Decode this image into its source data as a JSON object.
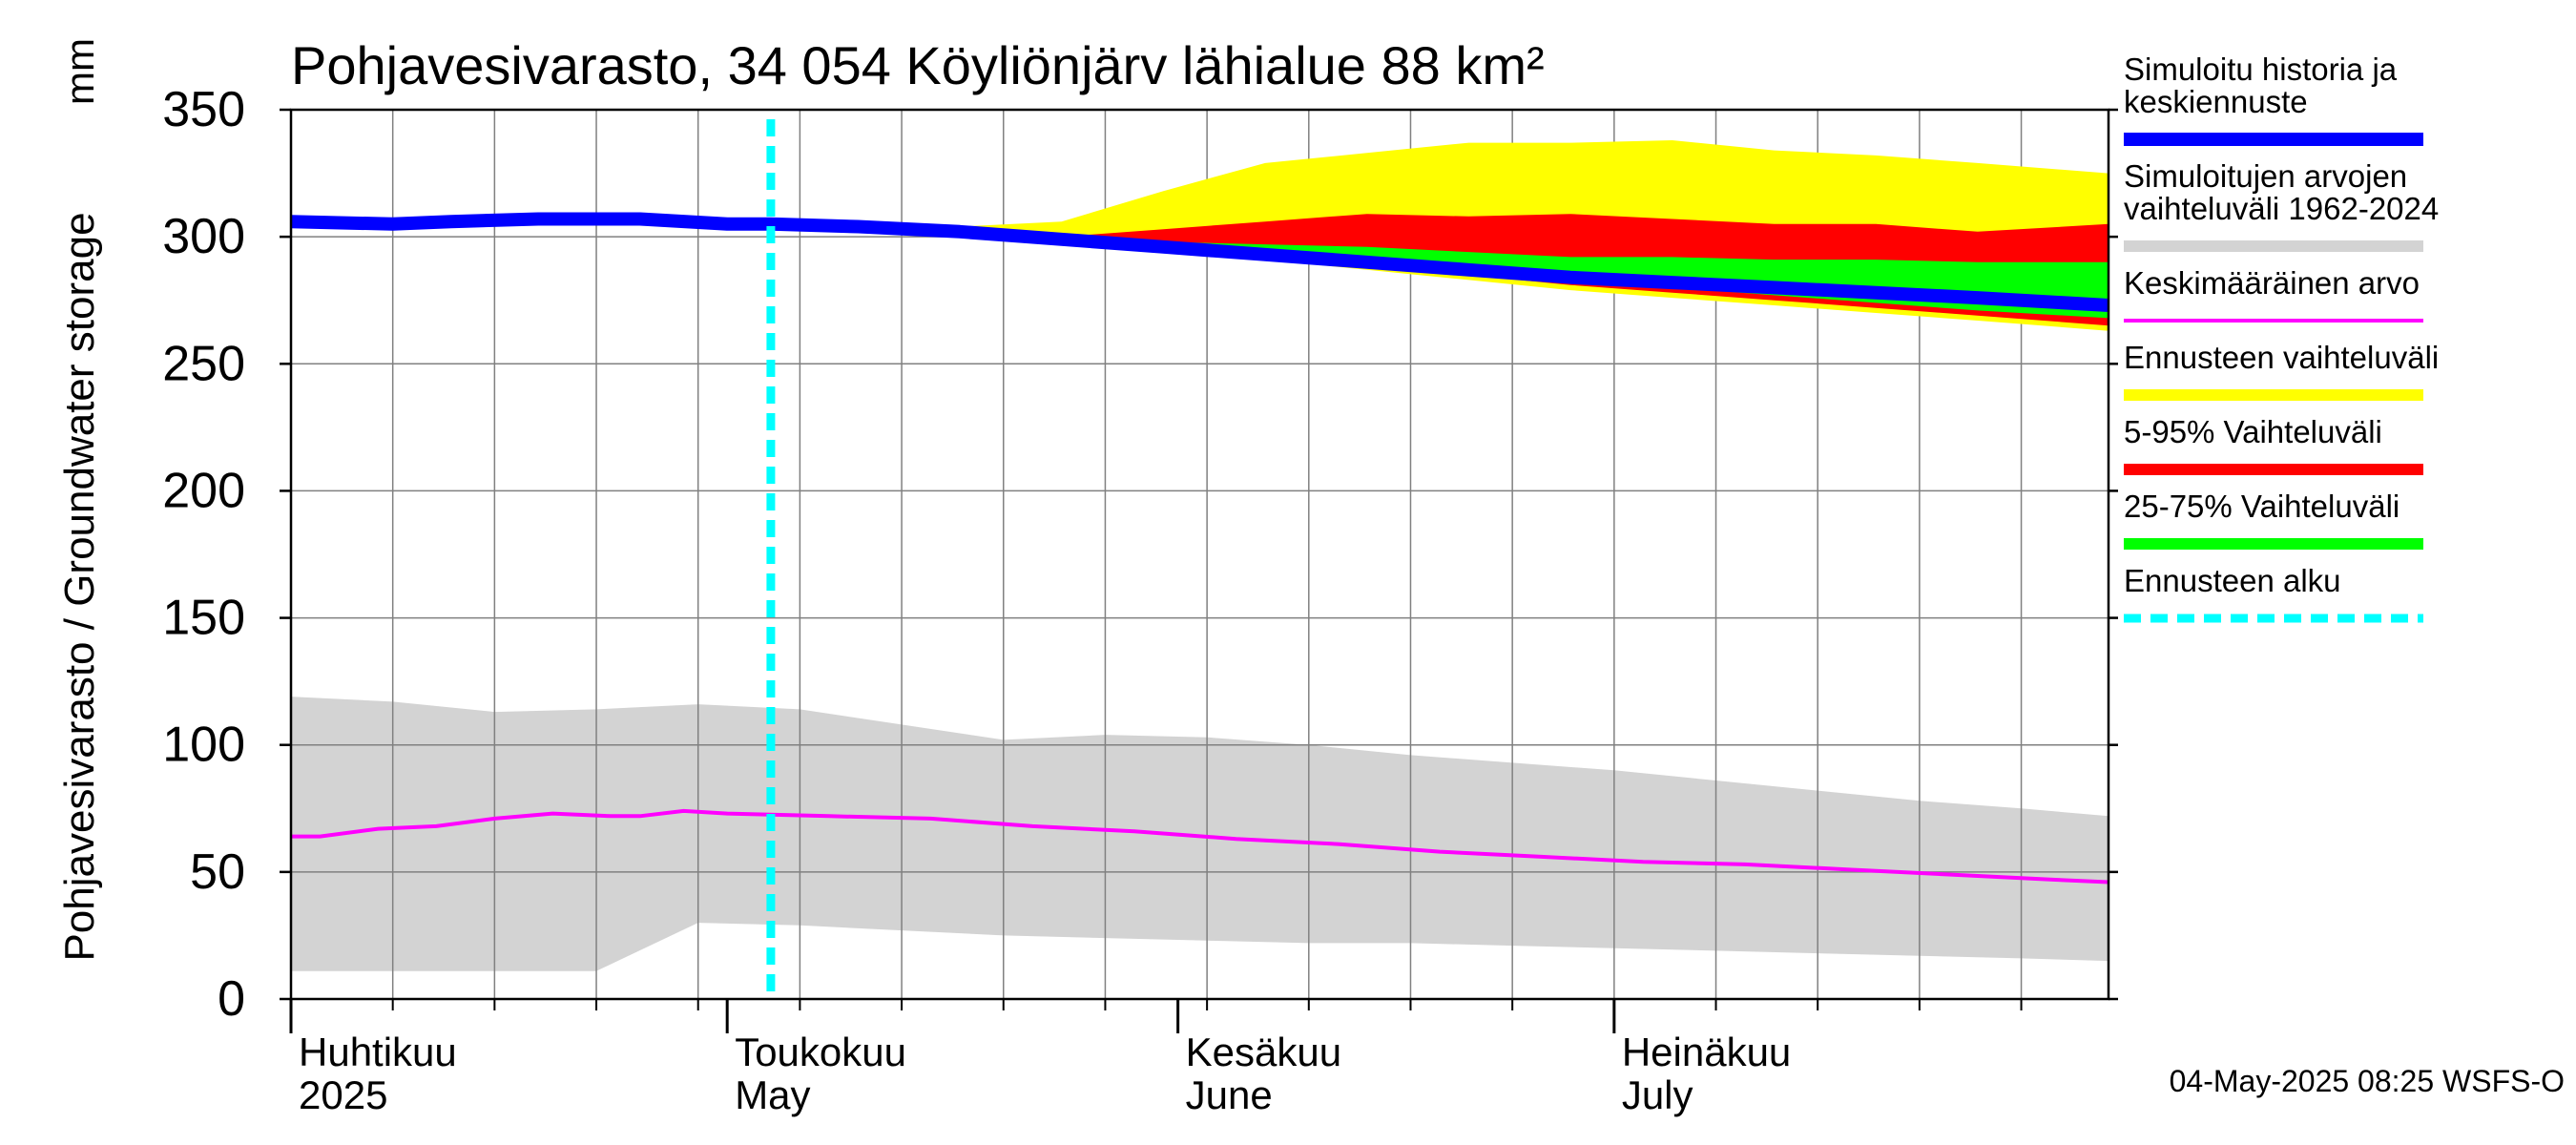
{
  "chart_data": {
    "type": "area",
    "title": "Pohjavesivarasto, 34 054 Köyliönjärv lähialue 88 km²",
    "ylabel": "Pohjavesivarasto / Groundwater storage",
    "yunit": "mm",
    "ylim": [
      0,
      350
    ],
    "yticks": [
      "0",
      "50",
      "100",
      "150",
      "200",
      "250",
      "300",
      "350"
    ],
    "xlim": [
      "2025-04-01",
      "2025-08-04"
    ],
    "months": [
      {
        "date": "2025-04-01",
        "fi": "Huhtikuu",
        "en": "2025"
      },
      {
        "date": "2025-05-01",
        "fi": "Toukokuu",
        "en": "May"
      },
      {
        "date": "2025-06-01",
        "fi": "Kesäkuu",
        "en": "June"
      },
      {
        "date": "2025-07-01",
        "fi": "Heinäkuu",
        "en": "July"
      }
    ],
    "forecast_start": "2025-05-04",
    "grid": true,
    "legend_position": "right",
    "timestamp": "04-May-2025 08:25 WSFS-O",
    "legend": [
      {
        "key": "sim",
        "label": [
          "Simuloitu historia ja",
          "keskiennuste"
        ],
        "color": "#0000ff",
        "style": "thick"
      },
      {
        "key": "hist_range",
        "label": [
          "Simuloitujen arvojen",
          "vaihteluväli 1962-2024"
        ],
        "color": "#d3d3d3",
        "style": "band"
      },
      {
        "key": "mean",
        "label": [
          "Keskimääräinen arvo"
        ],
        "color": "#ff00ff",
        "style": "thin"
      },
      {
        "key": "fc_range",
        "label": [
          "Ennusteen vaihteluväli"
        ],
        "color": "#ffff00",
        "style": "band"
      },
      {
        "key": "p5_95",
        "label": [
          "5-95% Vaihteluväli"
        ],
        "color": "#ff0000",
        "style": "band"
      },
      {
        "key": "p25_75",
        "label": [
          "25-75% Vaihteluväli"
        ],
        "color": "#00ff00",
        "style": "band"
      },
      {
        "key": "fc_start",
        "label": [
          "Ennusteen alku"
        ],
        "color": "#00ffff",
        "style": "dashed"
      }
    ],
    "series": {
      "hist_range": {
        "x": [
          "2025-04-01",
          "2025-04-08",
          "2025-04-15",
          "2025-04-22",
          "2025-04-29",
          "2025-05-06",
          "2025-05-13",
          "2025-05-20",
          "2025-05-27",
          "2025-06-03",
          "2025-06-10",
          "2025-06-17",
          "2025-06-24",
          "2025-07-01",
          "2025-07-08",
          "2025-07-15",
          "2025-07-22",
          "2025-07-29",
          "2025-08-04"
        ],
        "low": [
          11,
          11,
          11,
          11,
          30,
          29,
          27,
          25,
          24,
          23,
          22,
          22,
          21,
          20,
          19,
          18,
          17,
          16,
          15
        ],
        "high": [
          119,
          117,
          113,
          114,
          116,
          114,
          108,
          102,
          104,
          103,
          100,
          96,
          93,
          90,
          86,
          82,
          78,
          75,
          72
        ]
      },
      "mean": {
        "x": [
          "2025-04-01",
          "2025-04-03",
          "2025-04-07",
          "2025-04-11",
          "2025-04-15",
          "2025-04-19",
          "2025-04-23",
          "2025-04-25",
          "2025-04-28",
          "2025-05-01",
          "2025-05-08",
          "2025-05-15",
          "2025-05-22",
          "2025-05-29",
          "2025-06-05",
          "2025-06-12",
          "2025-06-19",
          "2025-06-26",
          "2025-07-03",
          "2025-07-10",
          "2025-07-17",
          "2025-07-24",
          "2025-07-31",
          "2025-08-04"
        ],
        "y": [
          64,
          64,
          67,
          68,
          71,
          73,
          72,
          72,
          74,
          73,
          72,
          71,
          68,
          66,
          63,
          61,
          58,
          56,
          54,
          53,
          51,
          49,
          47,
          46
        ]
      },
      "sim": {
        "x": [
          "2025-04-01",
          "2025-04-08",
          "2025-04-12",
          "2025-04-18",
          "2025-04-25",
          "2025-05-01",
          "2025-05-04",
          "2025-05-10",
          "2025-05-17",
          "2025-05-24",
          "2025-05-31",
          "2025-06-07",
          "2025-06-14",
          "2025-06-21",
          "2025-06-28",
          "2025-07-05",
          "2025-07-12",
          "2025-07-19",
          "2025-07-26",
          "2025-08-04"
        ],
        "y": [
          306,
          305,
          306,
          307,
          307,
          305,
          305,
          304,
          302,
          299,
          296,
          293,
          290,
          287,
          284,
          282,
          280,
          278,
          276,
          273
        ]
      },
      "fc_range": {
        "x": [
          "2025-05-04",
          "2025-05-10",
          "2025-05-17",
          "2025-05-24",
          "2025-05-31",
          "2025-06-07",
          "2025-06-14",
          "2025-06-21",
          "2025-06-28",
          "2025-07-05",
          "2025-07-12",
          "2025-07-19",
          "2025-07-26",
          "2025-08-04"
        ],
        "low": [
          305,
          304,
          302,
          298,
          294,
          291,
          287,
          283,
          279,
          276,
          273,
          270,
          267,
          263
        ],
        "high": [
          305,
          304,
          304,
          306,
          318,
          329,
          333,
          337,
          337,
          338,
          334,
          332,
          329,
          325
        ]
      },
      "p5_95": {
        "x": [
          "2025-05-04",
          "2025-05-10",
          "2025-05-17",
          "2025-05-24",
          "2025-05-31",
          "2025-06-07",
          "2025-06-14",
          "2025-06-21",
          "2025-06-28",
          "2025-07-05",
          "2025-07-12",
          "2025-07-19",
          "2025-07-26",
          "2025-08-04"
        ],
        "low": [
          305,
          304,
          302,
          299,
          295,
          292,
          288,
          285,
          281,
          278,
          275,
          272,
          269,
          265
        ],
        "high": [
          305,
          304,
          302,
          300,
          303,
          306,
          309,
          308,
          309,
          307,
          305,
          305,
          302,
          305
        ]
      },
      "p25_75": {
        "x": [
          "2025-05-04",
          "2025-05-10",
          "2025-05-17",
          "2025-05-24",
          "2025-05-31",
          "2025-06-07",
          "2025-06-14",
          "2025-06-21",
          "2025-06-28",
          "2025-07-05",
          "2025-07-12",
          "2025-07-19",
          "2025-07-26",
          "2025-08-04"
        ],
        "low": [
          305,
          304,
          302,
          299,
          296,
          292,
          289,
          286,
          283,
          280,
          277,
          274,
          271,
          268
        ],
        "high": [
          305,
          304,
          302,
          300,
          298,
          297,
          296,
          294,
          292,
          292,
          291,
          291,
          290,
          290
        ]
      }
    }
  }
}
